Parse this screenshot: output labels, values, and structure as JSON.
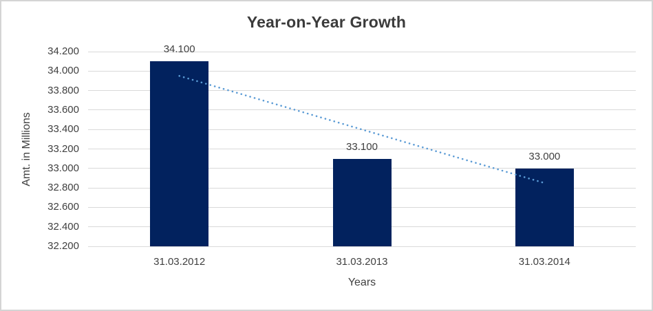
{
  "chart_data": {
    "type": "bar",
    "title": "Year-on-Year Growth",
    "xlabel": "Years",
    "ylabel": "Amt. in Millions",
    "categories": [
      "31.03.2012",
      "31.03.2013",
      "31.03.2014"
    ],
    "values": [
      34.1,
      33.1,
      33.0
    ],
    "data_labels": [
      "34.100",
      "33.100",
      "33.000"
    ],
    "ylim": [
      32.2,
      34.2
    ],
    "ytick_labels": [
      "32.200",
      "32.400",
      "32.600",
      "32.800",
      "33.000",
      "33.200",
      "33.400",
      "33.600",
      "33.800",
      "34.000",
      "34.200"
    ],
    "grid": true,
    "legend": "none",
    "bar_color": "#02225E",
    "gridline_color": "#d9d9d9",
    "text_color": "#404040",
    "title_color": "#3b3b3b",
    "trendline": {
      "type": "linear",
      "style": "dotted",
      "color": "#5B9BD5",
      "start_value": 33.95,
      "end_value": 32.85
    }
  }
}
